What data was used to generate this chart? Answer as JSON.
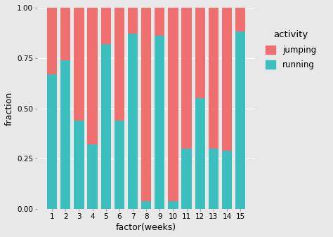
{
  "weeks": [
    1,
    2,
    3,
    4,
    5,
    6,
    7,
    8,
    9,
    10,
    11,
    12,
    13,
    14,
    15
  ],
  "running_fractions": [
    0.67,
    0.74,
    0.44,
    0.32,
    0.82,
    0.44,
    0.87,
    0.04,
    0.86,
    0.04,
    0.3,
    0.55,
    0.3,
    0.29,
    0.88
  ],
  "color_running": "#3DBFBF",
  "color_jumping": "#F07070",
  "bg_color": "#E8E8E8",
  "plot_bg": "#E8E8E8",
  "legend_bg": "#FFFFFF",
  "grid_color": "#FFFFFF",
  "xlabel": "factor(weeks)",
  "ylabel": "fraction",
  "legend_title": "activity",
  "ylim": [
    0,
    1.0
  ],
  "yticks": [
    0.0,
    0.25,
    0.5,
    0.75,
    1.0
  ],
  "bar_width": 0.75
}
